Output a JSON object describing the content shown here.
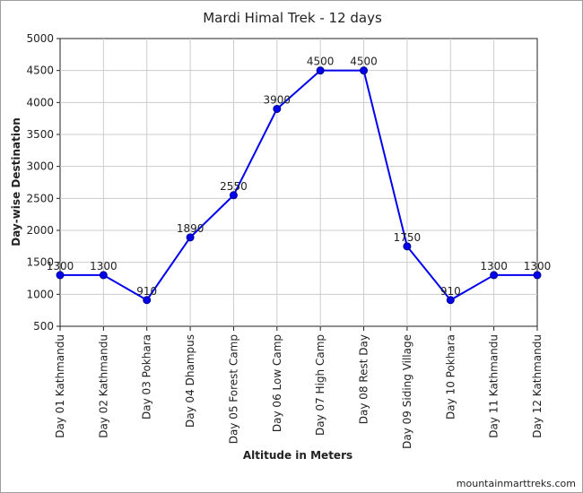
{
  "chart_data": {
    "type": "line",
    "title": "Mardi Himal Trek - 12 days",
    "xlabel": "Altitude in Meters",
    "ylabel": "Day-wise Destination",
    "categories": [
      "Day 01 Kathmandu",
      "Day 02 Kathmandu",
      "Day 03 Pokhara",
      "Day 04 Dhampus",
      "Day 05 Forest Camp",
      "Day 06 Low Camp",
      "Day 07 High Camp",
      "Day 08 Rest Day",
      "Day 09 Siding Village",
      "Day 10 Pokhara",
      "Day 11 Kathmandu",
      "Day 12 Kathmandu"
    ],
    "series": [
      {
        "values": [
          1300,
          1300,
          910,
          1890,
          2550,
          3900,
          4500,
          4500,
          1750,
          910,
          1300,
          1300
        ],
        "color": "#0000ee"
      }
    ],
    "data_labels": [
      "1300",
      "1300",
      "910",
      "1890",
      "2550",
      "3900",
      "4500",
      "4500",
      "1750",
      "910",
      "1300",
      "1300"
    ],
    "ylim": [
      500,
      5000
    ],
    "y_ticks": [
      "500",
      "1000",
      "1500",
      "2000",
      "2500",
      "3000",
      "3500",
      "4000",
      "4500",
      "5000"
    ],
    "grid": true,
    "legend": "none"
  },
  "footer": {
    "credit": "mountainmarttreks.com"
  }
}
